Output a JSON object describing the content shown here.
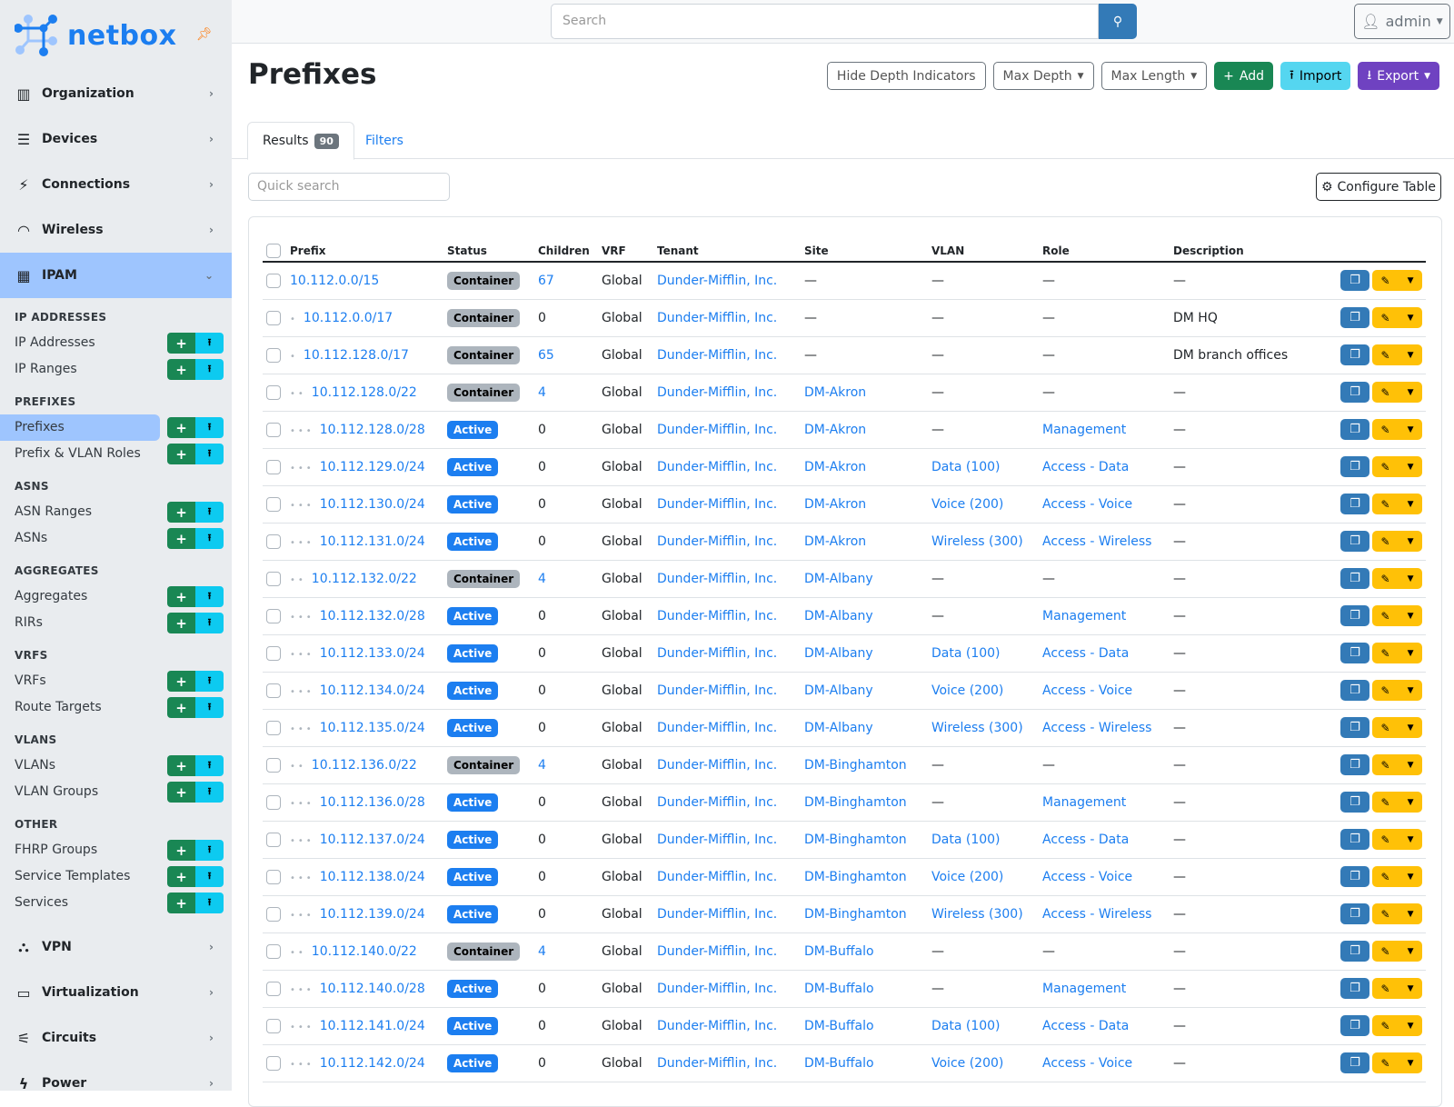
{
  "brand": {
    "name": "netbox",
    "accent": "#1c7ef0"
  },
  "sidebar": {
    "top_items": [
      {
        "label": "Organization",
        "icon": "building-icon"
      },
      {
        "label": "Devices",
        "icon": "server-icon"
      },
      {
        "label": "Connections",
        "icon": "plug-icon"
      },
      {
        "label": "Wireless",
        "icon": "wifi-icon"
      }
    ],
    "active_menu": {
      "label": "IPAM",
      "icon": "ipam-icon"
    },
    "sections": [
      {
        "title": "IP ADDRESSES",
        "items": [
          "IP Addresses",
          "IP Ranges"
        ]
      },
      {
        "title": "PREFIXES",
        "items": [
          "Prefixes",
          "Prefix & VLAN Roles"
        ]
      },
      {
        "title": "ASNS",
        "items": [
          "ASN Ranges",
          "ASNs"
        ]
      },
      {
        "title": "AGGREGATES",
        "items": [
          "Aggregates",
          "RIRs"
        ]
      },
      {
        "title": "VRFS",
        "items": [
          "VRFs",
          "Route Targets"
        ]
      },
      {
        "title": "VLANS",
        "items": [
          "VLANs",
          "VLAN Groups"
        ]
      },
      {
        "title": "OTHER",
        "items": [
          "FHRP Groups",
          "Service Templates",
          "Services"
        ]
      }
    ],
    "active_item": "Prefixes",
    "bottom_items": [
      {
        "label": "VPN",
        "icon": "vpn-icon"
      },
      {
        "label": "Virtualization",
        "icon": "monitor-icon"
      },
      {
        "label": "Circuits",
        "icon": "circuits-icon"
      },
      {
        "label": "Power",
        "icon": "power-icon"
      }
    ]
  },
  "topbar": {
    "search_placeholder": "Search",
    "user": "admin"
  },
  "page": {
    "title": "Prefixes",
    "buttons": {
      "hide_depth": "Hide Depth Indicators",
      "max_depth": "Max Depth",
      "max_length": "Max Length",
      "add": "Add",
      "import": "Import",
      "export": "Export"
    }
  },
  "tabs": {
    "results": "Results",
    "results_count": "90",
    "filters": "Filters"
  },
  "quick_search_placeholder": "Quick search",
  "configure_table": "Configure Table",
  "table": {
    "columns": [
      "Prefix",
      "Status",
      "Children",
      "VRF",
      "Tenant",
      "Site",
      "VLAN",
      "Role",
      "Description"
    ],
    "rows": [
      {
        "prefix": "10.112.0.0/15",
        "depth": 0,
        "status": "Container",
        "children": "67",
        "vrf": "Global",
        "tenant": "Dunder-Mifflin, Inc.",
        "site": "—",
        "vlan": "—",
        "role": "—",
        "description": "—"
      },
      {
        "prefix": "10.112.0.0/17",
        "depth": 1,
        "status": "Container",
        "children": "0",
        "vrf": "Global",
        "tenant": "Dunder-Mifflin, Inc.",
        "site": "—",
        "vlan": "—",
        "role": "—",
        "description": "DM HQ"
      },
      {
        "prefix": "10.112.128.0/17",
        "depth": 1,
        "status": "Container",
        "children": "65",
        "vrf": "Global",
        "tenant": "Dunder-Mifflin, Inc.",
        "site": "—",
        "vlan": "—",
        "role": "—",
        "description": "DM branch offices"
      },
      {
        "prefix": "10.112.128.0/22",
        "depth": 2,
        "status": "Container",
        "children": "4",
        "vrf": "Global",
        "tenant": "Dunder-Mifflin, Inc.",
        "site": "DM-Akron",
        "vlan": "—",
        "role": "—",
        "description": "—"
      },
      {
        "prefix": "10.112.128.0/28",
        "depth": 3,
        "status": "Active",
        "children": "0",
        "vrf": "Global",
        "tenant": "Dunder-Mifflin, Inc.",
        "site": "DM-Akron",
        "vlan": "—",
        "role": "Management",
        "description": "—"
      },
      {
        "prefix": "10.112.129.0/24",
        "depth": 3,
        "status": "Active",
        "children": "0",
        "vrf": "Global",
        "tenant": "Dunder-Mifflin, Inc.",
        "site": "DM-Akron",
        "vlan": "Data (100)",
        "role": "Access - Data",
        "description": "—"
      },
      {
        "prefix": "10.112.130.0/24",
        "depth": 3,
        "status": "Active",
        "children": "0",
        "vrf": "Global",
        "tenant": "Dunder-Mifflin, Inc.",
        "site": "DM-Akron",
        "vlan": "Voice (200)",
        "role": "Access - Voice",
        "description": "—"
      },
      {
        "prefix": "10.112.131.0/24",
        "depth": 3,
        "status": "Active",
        "children": "0",
        "vrf": "Global",
        "tenant": "Dunder-Mifflin, Inc.",
        "site": "DM-Akron",
        "vlan": "Wireless (300)",
        "role": "Access - Wireless",
        "description": "—"
      },
      {
        "prefix": "10.112.132.0/22",
        "depth": 2,
        "status": "Container",
        "children": "4",
        "vrf": "Global",
        "tenant": "Dunder-Mifflin, Inc.",
        "site": "DM-Albany",
        "vlan": "—",
        "role": "—",
        "description": "—"
      },
      {
        "prefix": "10.112.132.0/28",
        "depth": 3,
        "status": "Active",
        "children": "0",
        "vrf": "Global",
        "tenant": "Dunder-Mifflin, Inc.",
        "site": "DM-Albany",
        "vlan": "—",
        "role": "Management",
        "description": "—"
      },
      {
        "prefix": "10.112.133.0/24",
        "depth": 3,
        "status": "Active",
        "children": "0",
        "vrf": "Global",
        "tenant": "Dunder-Mifflin, Inc.",
        "site": "DM-Albany",
        "vlan": "Data (100)",
        "role": "Access - Data",
        "description": "—"
      },
      {
        "prefix": "10.112.134.0/24",
        "depth": 3,
        "status": "Active",
        "children": "0",
        "vrf": "Global",
        "tenant": "Dunder-Mifflin, Inc.",
        "site": "DM-Albany",
        "vlan": "Voice (200)",
        "role": "Access - Voice",
        "description": "—"
      },
      {
        "prefix": "10.112.135.0/24",
        "depth": 3,
        "status": "Active",
        "children": "0",
        "vrf": "Global",
        "tenant": "Dunder-Mifflin, Inc.",
        "site": "DM-Albany",
        "vlan": "Wireless (300)",
        "role": "Access - Wireless",
        "description": "—"
      },
      {
        "prefix": "10.112.136.0/22",
        "depth": 2,
        "status": "Container",
        "children": "4",
        "vrf": "Global",
        "tenant": "Dunder-Mifflin, Inc.",
        "site": "DM-Binghamton",
        "vlan": "—",
        "role": "—",
        "description": "—"
      },
      {
        "prefix": "10.112.136.0/28",
        "depth": 3,
        "status": "Active",
        "children": "0",
        "vrf": "Global",
        "tenant": "Dunder-Mifflin, Inc.",
        "site": "DM-Binghamton",
        "vlan": "—",
        "role": "Management",
        "description": "—"
      },
      {
        "prefix": "10.112.137.0/24",
        "depth": 3,
        "status": "Active",
        "children": "0",
        "vrf": "Global",
        "tenant": "Dunder-Mifflin, Inc.",
        "site": "DM-Binghamton",
        "vlan": "Data (100)",
        "role": "Access - Data",
        "description": "—"
      },
      {
        "prefix": "10.112.138.0/24",
        "depth": 3,
        "status": "Active",
        "children": "0",
        "vrf": "Global",
        "tenant": "Dunder-Mifflin, Inc.",
        "site": "DM-Binghamton",
        "vlan": "Voice (200)",
        "role": "Access - Voice",
        "description": "—"
      },
      {
        "prefix": "10.112.139.0/24",
        "depth": 3,
        "status": "Active",
        "children": "0",
        "vrf": "Global",
        "tenant": "Dunder-Mifflin, Inc.",
        "site": "DM-Binghamton",
        "vlan": "Wireless (300)",
        "role": "Access - Wireless",
        "description": "—"
      },
      {
        "prefix": "10.112.140.0/22",
        "depth": 2,
        "status": "Container",
        "children": "4",
        "vrf": "Global",
        "tenant": "Dunder-Mifflin, Inc.",
        "site": "DM-Buffalo",
        "vlan": "—",
        "role": "—",
        "description": "—"
      },
      {
        "prefix": "10.112.140.0/28",
        "depth": 3,
        "status": "Active",
        "children": "0",
        "vrf": "Global",
        "tenant": "Dunder-Mifflin, Inc.",
        "site": "DM-Buffalo",
        "vlan": "—",
        "role": "Management",
        "description": "—"
      },
      {
        "prefix": "10.112.141.0/24",
        "depth": 3,
        "status": "Active",
        "children": "0",
        "vrf": "Global",
        "tenant": "Dunder-Mifflin, Inc.",
        "site": "DM-Buffalo",
        "vlan": "Data (100)",
        "role": "Access - Data",
        "description": "—"
      },
      {
        "prefix": "10.112.142.0/24",
        "depth": 3,
        "status": "Active",
        "children": "0",
        "vrf": "Global",
        "tenant": "Dunder-Mifflin, Inc.",
        "site": "DM-Buffalo",
        "vlan": "Voice (200)",
        "role": "Access - Voice",
        "description": "—"
      }
    ]
  }
}
